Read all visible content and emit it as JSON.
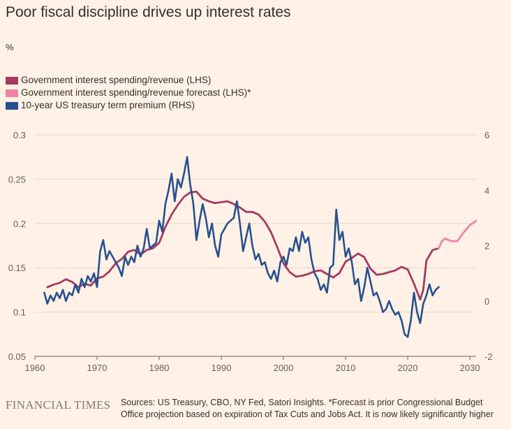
{
  "title": "Poor fiscal discipline drives up interest rates",
  "unit_label": "%",
  "legend": [
    {
      "label": "Government interest spending/revenue (LHS)",
      "color": "#A5395F"
    },
    {
      "label": "Government interest spending/revenue forecast (LHS)*",
      "color": "#F083A8"
    },
    {
      "label": "10-year US treasury term premium (RHS)",
      "color": "#27508F"
    }
  ],
  "footer": {
    "logo": "FINANCIAL TIMES",
    "source": "Sources: US Treasury, CBO, NY Fed, Satori Insights. *Forecast is prior Congressional Budget Office projection based on expiration of Tax Cuts and Jobs Act. It is now likely significantly higher"
  },
  "chart_data": {
    "type": "line",
    "title": "Poor fiscal discipline drives up interest rates",
    "xlabel": "",
    "ylabel": "%",
    "xlim": [
      1960,
      2031
    ],
    "ylim_left": [
      0.05,
      0.3
    ],
    "ylim_right": [
      -2,
      6
    ],
    "x_ticks": [
      "1960",
      "1970",
      "1980",
      "1990",
      "2000",
      "2010",
      "2020",
      "2030"
    ],
    "y_ticks_left": [
      "0.3",
      "0.25",
      "0.2",
      "0.15",
      "0.1",
      "0.05"
    ],
    "y_ticks_right": [
      "6",
      "4",
      "2",
      "0",
      "-2"
    ],
    "grid": "horizontal",
    "legend_position": "top-left",
    "series": [
      {
        "name": "Government interest spending/revenue (LHS)",
        "axis": "left",
        "color": "#A5395F",
        "points": [
          [
            1962,
            0.128
          ],
          [
            1963,
            0.131
          ],
          [
            1964,
            0.133
          ],
          [
            1965,
            0.137
          ],
          [
            1966,
            0.134
          ],
          [
            1967,
            0.128
          ],
          [
            1968,
            0.132
          ],
          [
            1969,
            0.13
          ],
          [
            1970,
            0.138
          ],
          [
            1971,
            0.14
          ],
          [
            1972,
            0.146
          ],
          [
            1973,
            0.155
          ],
          [
            1974,
            0.16
          ],
          [
            1975,
            0.168
          ],
          [
            1976,
            0.17
          ],
          [
            1977,
            0.165
          ],
          [
            1978,
            0.17
          ],
          [
            1979,
            0.172
          ],
          [
            1980,
            0.178
          ],
          [
            1981,
            0.196
          ],
          [
            1982,
            0.21
          ],
          [
            1983,
            0.221
          ],
          [
            1984,
            0.23
          ],
          [
            1985,
            0.235
          ],
          [
            1986,
            0.236
          ],
          [
            1987,
            0.228
          ],
          [
            1988,
            0.225
          ],
          [
            1989,
            0.223
          ],
          [
            1990,
            0.224
          ],
          [
            1991,
            0.225
          ],
          [
            1992,
            0.222
          ],
          [
            1993,
            0.218
          ],
          [
            1994,
            0.213
          ],
          [
            1995,
            0.213
          ],
          [
            1996,
            0.21
          ],
          [
            1997,
            0.202
          ],
          [
            1998,
            0.19
          ],
          [
            1999,
            0.173
          ],
          [
            2000,
            0.155
          ],
          [
            2001,
            0.145
          ],
          [
            2002,
            0.14
          ],
          [
            2003,
            0.141
          ],
          [
            2004,
            0.143
          ],
          [
            2005,
            0.146
          ],
          [
            2006,
            0.147
          ],
          [
            2007,
            0.143
          ],
          [
            2008,
            0.139
          ],
          [
            2009,
            0.144
          ],
          [
            2010,
            0.157
          ],
          [
            2011,
            0.161
          ],
          [
            2012,
            0.166
          ],
          [
            2013,
            0.162
          ],
          [
            2014,
            0.149
          ],
          [
            2015,
            0.142
          ],
          [
            2016,
            0.143
          ],
          [
            2017,
            0.145
          ],
          [
            2018,
            0.147
          ],
          [
            2019,
            0.151
          ],
          [
            2020,
            0.148
          ],
          [
            2021,
            0.132
          ],
          [
            2022,
            0.114
          ],
          [
            2022.5,
            0.125
          ],
          [
            2023,
            0.158
          ],
          [
            2024,
            0.17
          ],
          [
            2025,
            0.172
          ]
        ]
      },
      {
        "name": "Government interest spending/revenue forecast (LHS)*",
        "axis": "left",
        "color": "#F083A8",
        "points": [
          [
            2025,
            0.172
          ],
          [
            2025.5,
            0.18
          ],
          [
            2026,
            0.183
          ],
          [
            2027,
            0.18
          ],
          [
            2028,
            0.18
          ],
          [
            2029,
            0.19
          ],
          [
            2030,
            0.198
          ],
          [
            2031,
            0.203
          ]
        ]
      },
      {
        "name": "10-year US treasury term premium (RHS)",
        "axis": "right",
        "color": "#27508F",
        "points": [
          [
            1961.5,
            0.3
          ],
          [
            1962,
            -0.1
          ],
          [
            1962.5,
            0.2
          ],
          [
            1963,
            0.0
          ],
          [
            1963.5,
            0.3
          ],
          [
            1964,
            0.1
          ],
          [
            1964.5,
            0.4
          ],
          [
            1965,
            0.0
          ],
          [
            1965.5,
            0.3
          ],
          [
            1966,
            0.2
          ],
          [
            1966.5,
            0.6
          ],
          [
            1967,
            0.3
          ],
          [
            1967.5,
            0.8
          ],
          [
            1968,
            0.5
          ],
          [
            1968.5,
            0.9
          ],
          [
            1969,
            0.7
          ],
          [
            1969.5,
            1.0
          ],
          [
            1970,
            0.5
          ],
          [
            1970.5,
            1.8
          ],
          [
            1971,
            2.2
          ],
          [
            1971.5,
            1.5
          ],
          [
            1972,
            1.8
          ],
          [
            1972.5,
            1.6
          ],
          [
            1973,
            1.4
          ],
          [
            1973.5,
            1.2
          ],
          [
            1974,
            0.9
          ],
          [
            1974.5,
            1.6
          ],
          [
            1975,
            1.3
          ],
          [
            1975.5,
            1.6
          ],
          [
            1976,
            1.4
          ],
          [
            1976.5,
            2.0
          ],
          [
            1977,
            1.6
          ],
          [
            1977.5,
            1.9
          ],
          [
            1978,
            2.6
          ],
          [
            1978.5,
            1.9
          ],
          [
            1979,
            2.0
          ],
          [
            1979.5,
            2.1
          ],
          [
            1980,
            2.9
          ],
          [
            1980.5,
            2.5
          ],
          [
            1981,
            3.5
          ],
          [
            1981.5,
            4.0
          ],
          [
            1982,
            4.6
          ],
          [
            1982.5,
            3.6
          ],
          [
            1983,
            4.4
          ],
          [
            1983.5,
            4.1
          ],
          [
            1984,
            4.6
          ],
          [
            1984.5,
            5.2
          ],
          [
            1985,
            4.2
          ],
          [
            1985.5,
            3.5
          ],
          [
            1986,
            2.2
          ],
          [
            1986.5,
            2.9
          ],
          [
            1987,
            3.5
          ],
          [
            1987.5,
            3.0
          ],
          [
            1988,
            2.3
          ],
          [
            1988.5,
            2.8
          ],
          [
            1989,
            2.0
          ],
          [
            1989.5,
            1.6
          ],
          [
            1990,
            2.4
          ],
          [
            1990.5,
            2.6
          ],
          [
            1991,
            2.8
          ],
          [
            1991.5,
            2.9
          ],
          [
            1992,
            3.0
          ],
          [
            1992.5,
            3.6
          ],
          [
            1993,
            2.8
          ],
          [
            1993.5,
            1.8
          ],
          [
            1994,
            2.3
          ],
          [
            1994.5,
            2.8
          ],
          [
            1995,
            2.0
          ],
          [
            1995.5,
            1.5
          ],
          [
            1996,
            1.7
          ],
          [
            1996.5,
            1.3
          ],
          [
            1997,
            1.4
          ],
          [
            1997.5,
            1.0
          ],
          [
            1998,
            0.8
          ],
          [
            1998.5,
            1.1
          ],
          [
            1999,
            0.7
          ],
          [
            1999.5,
            1.4
          ],
          [
            2000,
            1.6
          ],
          [
            2000.5,
            1.3
          ],
          [
            2001,
            1.9
          ],
          [
            2001.5,
            1.8
          ],
          [
            2002,
            2.3
          ],
          [
            2002.5,
            1.8
          ],
          [
            2003,
            2.5
          ],
          [
            2003.5,
            2.1
          ],
          [
            2004,
            2.3
          ],
          [
            2004.5,
            1.5
          ],
          [
            2005,
            1.0
          ],
          [
            2005.5,
            0.8
          ],
          [
            2006,
            0.4
          ],
          [
            2006.5,
            0.6
          ],
          [
            2007,
            0.3
          ],
          [
            2007.5,
            1.2
          ],
          [
            2008,
            1.3
          ],
          [
            2008.5,
            3.3
          ],
          [
            2009,
            2.2
          ],
          [
            2009.5,
            2.5
          ],
          [
            2010,
            1.6
          ],
          [
            2010.5,
            1.9
          ],
          [
            2011,
            1.4
          ],
          [
            2011.5,
            0.6
          ],
          [
            2012,
            0.8
          ],
          [
            2012.5,
            0.0
          ],
          [
            2013,
            0.5
          ],
          [
            2013.5,
            1.2
          ],
          [
            2014,
            0.7
          ],
          [
            2014.5,
            0.2
          ],
          [
            2015,
            0.3
          ],
          [
            2015.5,
            0.0
          ],
          [
            2016,
            -0.4
          ],
          [
            2016.5,
            -0.3
          ],
          [
            2017,
            0.0
          ],
          [
            2017.5,
            -0.3
          ],
          [
            2018,
            -0.5
          ],
          [
            2018.5,
            -0.4
          ],
          [
            2019,
            -0.7
          ],
          [
            2019.5,
            -1.2
          ],
          [
            2020,
            -1.3
          ],
          [
            2020.5,
            -0.7
          ],
          [
            2021,
            0.3
          ],
          [
            2021.5,
            -0.4
          ],
          [
            2022,
            -0.8
          ],
          [
            2022.5,
            -0.1
          ],
          [
            2023,
            0.2
          ],
          [
            2023.5,
            0.6
          ],
          [
            2024,
            0.2
          ],
          [
            2024.5,
            0.4
          ],
          [
            2025,
            0.5
          ]
        ]
      }
    ]
  }
}
